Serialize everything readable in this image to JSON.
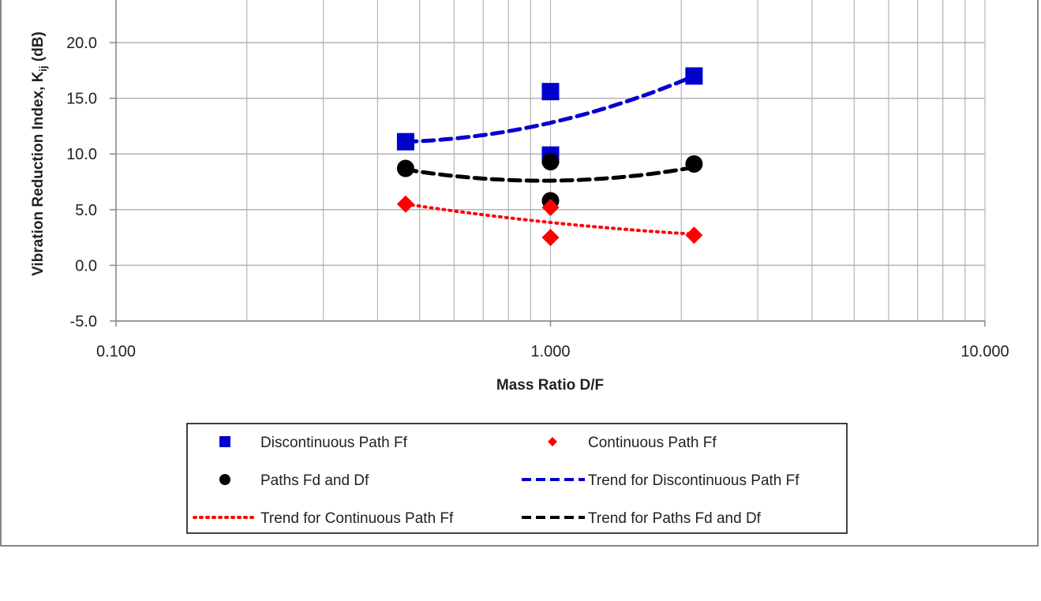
{
  "chart_data": {
    "type": "scatter",
    "title": "",
    "xlabel": "Mass Ratio D/F",
    "ylabel": "Vibration Reduction Index, K",
    "ylabel_sub": "ij",
    "ylabel_unit": " (dB)",
    "xscale": "log",
    "xlim": [
      0.1,
      10
    ],
    "ylim": [
      -5,
      25
    ],
    "x_ticks": [
      0.1,
      1,
      10
    ],
    "x_tick_labels": [
      "0.100",
      "1.000",
      "10.000"
    ],
    "y_ticks": [
      -5,
      0,
      5,
      10,
      15,
      20
    ],
    "y_tick_labels": [
      "-5.0",
      "0.0",
      "5.0",
      "10.0",
      "15.0",
      "20.0"
    ],
    "grid": true,
    "legend_position": "bottom",
    "series": [
      {
        "name": "Discontinuous Path Ff",
        "marker": "square",
        "color": "#0000CC",
        "points": [
          [
            0.464,
            11.1
          ],
          [
            1.0,
            15.6
          ],
          [
            1.0,
            9.9
          ],
          [
            2.14,
            17.0
          ]
        ]
      },
      {
        "name": "Continuous Path Ff",
        "marker": "diamond",
        "color": "#FF0000",
        "points": [
          [
            0.464,
            5.5
          ],
          [
            1.0,
            5.2
          ],
          [
            1.0,
            2.5
          ],
          [
            2.14,
            2.7
          ]
        ]
      },
      {
        "name": "Paths Fd and Df",
        "marker": "circle",
        "color": "#000000",
        "points": [
          [
            0.464,
            8.7
          ],
          [
            1.0,
            9.3
          ],
          [
            1.0,
            5.8
          ],
          [
            2.14,
            9.1
          ]
        ]
      }
    ],
    "trends": [
      {
        "name": "Trend for Discontinuous Path Ff",
        "style": "dashed",
        "color": "#0000CC",
        "points": [
          [
            0.464,
            11.1
          ],
          [
            1.0,
            12.8
          ],
          [
            2.14,
            17.0
          ]
        ]
      },
      {
        "name": "Trend for Continuous Path Ff",
        "style": "dotted",
        "color": "#FF0000",
        "points": [
          [
            0.464,
            5.5
          ],
          [
            1.0,
            3.85
          ],
          [
            2.14,
            2.8
          ]
        ]
      },
      {
        "name": "Trend for Paths Fd and Df",
        "style": "dashed",
        "color": "#000000",
        "points": [
          [
            0.464,
            8.6
          ],
          [
            1.0,
            7.6
          ],
          [
            2.14,
            8.8
          ]
        ]
      }
    ],
    "legend_order": [
      {
        "label": "Discontinuous Path Ff",
        "kind": "series",
        "index": 0
      },
      {
        "label": "Continuous Path Ff",
        "kind": "series",
        "index": 1
      },
      {
        "label": "Paths Fd and Df",
        "kind": "series",
        "index": 2
      },
      {
        "label": "Trend for Discontinuous Path Ff",
        "kind": "trend",
        "index": 0
      },
      {
        "label": "Trend for Continuous Path Ff",
        "kind": "trend",
        "index": 1
      },
      {
        "label": "Trend for Paths Fd and Df",
        "kind": "trend",
        "index": 2
      }
    ]
  }
}
